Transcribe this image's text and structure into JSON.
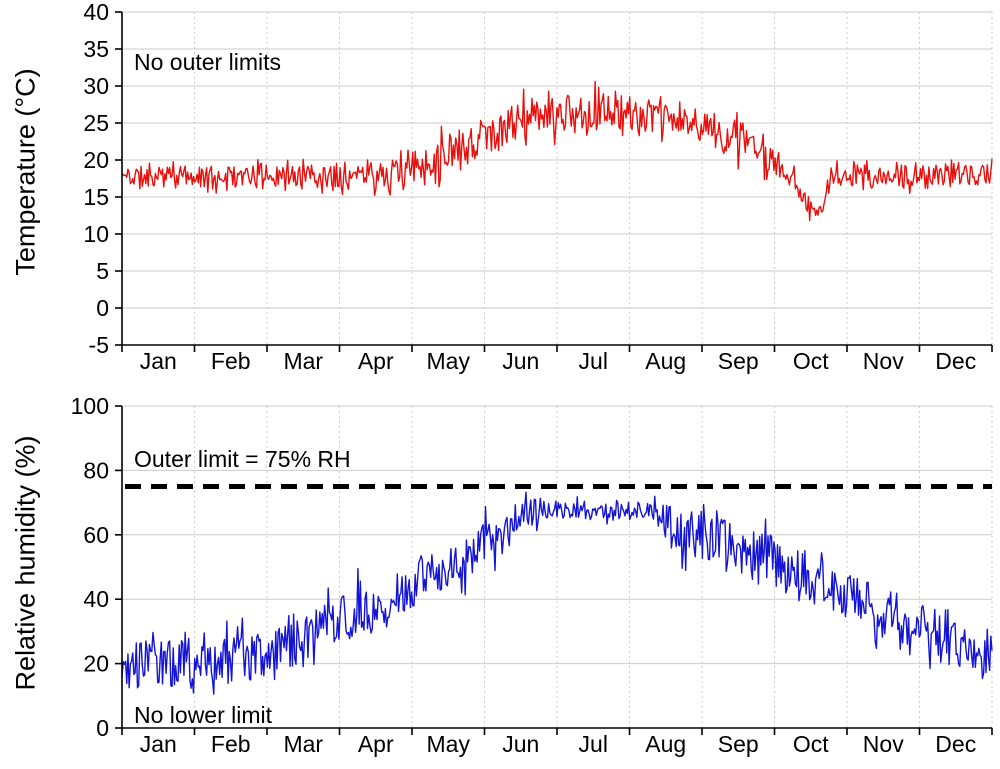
{
  "figure": {
    "background": "#ffffff",
    "grid_color": "#cbcbcb",
    "axis_color": "#000000"
  },
  "chart_data": [
    {
      "type": "line",
      "id": "temperature",
      "ylabel": "Temperature (°C)",
      "x_categories": [
        "Jan",
        "Feb",
        "Mar",
        "Apr",
        "May",
        "Jun",
        "Jul",
        "Aug",
        "Sep",
        "Oct",
        "Nov",
        "Dec"
      ],
      "ylim": [
        -5,
        40
      ],
      "y_step": 5,
      "grid": true,
      "legend": "none",
      "annotations": [
        "No outer limits"
      ],
      "seed": 11,
      "value_clamp": [
        10.6,
        31.2
      ],
      "series": [
        {
          "name": "Temperature",
          "color": "#e8100c",
          "monthly_mean": [
            17.8,
            17.8,
            17.8,
            17.9,
            20.5,
            24.8,
            26.7,
            26.1,
            23.3,
            16.5,
            17.9,
            17.9
          ],
          "noise_band": "±1.5 °C winter, ±2.5 °C summer; dip to ~11 °C in early October, peaks to ~31 °C in July",
          "envelope_anchors": [
            [
              0,
              17.8,
              1.4
            ],
            [
              100,
              17.8,
              1.4
            ],
            [
              113,
              18.2,
              1.8
            ],
            [
              125,
              19.3,
              2.4
            ],
            [
              140,
              21.3,
              2.6
            ],
            [
              155,
              23.8,
              2.6
            ],
            [
              170,
              25.4,
              2.5
            ],
            [
              185,
              26.4,
              2.4
            ],
            [
              205,
              26.7,
              2.4
            ],
            [
              222,
              25.9,
              2.2
            ],
            [
              238,
              25.0,
              2.2
            ],
            [
              252,
              23.5,
              2.2
            ],
            [
              264,
              21.8,
              2.0
            ],
            [
              274,
              19.8,
              1.8
            ],
            [
              282,
              17.3,
              1.5
            ],
            [
              288,
              14.2,
              1.2
            ],
            [
              292,
              12.3,
              0.9
            ],
            [
              295,
              15.3,
              1.2
            ],
            [
              298,
              17.8,
              1.4
            ],
            [
              365,
              17.9,
              1.4
            ]
          ]
        }
      ]
    },
    {
      "type": "line",
      "id": "humidity",
      "ylabel": "Relative humidity (%)",
      "x_categories": [
        "Jan",
        "Feb",
        "Mar",
        "Apr",
        "May",
        "Jun",
        "Jul",
        "Aug",
        "Sep",
        "Oct",
        "Nov",
        "Dec"
      ],
      "ylim": [
        0,
        100
      ],
      "y_step": 20,
      "grid": true,
      "legend": "none",
      "annotations": [
        "Outer limit = 75% RH",
        "No lower limit"
      ],
      "seed": 97,
      "value_clamp": [
        10.5,
        77.5
      ],
      "limit_line": {
        "label": "Outer limit = 75% RH",
        "value": 75,
        "color": "#000000",
        "style": "dashed"
      },
      "series": [
        {
          "name": "Relative humidity",
          "color": "#1414d4",
          "monthly_mean": [
            20,
            21,
            28,
            37,
            48,
            60,
            67.5,
            66.5,
            57,
            47,
            37,
            27
          ],
          "noise_band": "±7% RH most of year; tight ±2.5% plateau ~67.5% mid-Jun to mid-Aug; brief peak touching ~77% near mid-June",
          "envelope_anchors": [
            [
              0,
              20,
              7.5
            ],
            [
              25,
              19.5,
              7.5
            ],
            [
              50,
              21,
              7.5
            ],
            [
              70,
              26,
              7.5
            ],
            [
              90,
              33,
              7.5
            ],
            [
              110,
              40,
              7
            ],
            [
              130,
              47,
              7
            ],
            [
              150,
              56,
              6.5
            ],
            [
              162,
              62,
              6
            ],
            [
              170,
              69,
              5.5
            ],
            [
              176,
              68,
              3
            ],
            [
              185,
              67.5,
              2.5
            ],
            [
              222,
              67.5,
              2.5
            ],
            [
              230,
              63,
              7.5
            ],
            [
              243,
              60,
              7.5
            ],
            [
              258,
              56,
              7.5
            ],
            [
              273,
              52,
              7.5
            ],
            [
              290,
              46,
              7
            ],
            [
              304,
              42,
              7
            ],
            [
              320,
              36,
              7
            ],
            [
              334,
              31,
              7
            ],
            [
              350,
              26,
              7
            ],
            [
              365,
              23.5,
              7
            ]
          ]
        }
      ]
    }
  ]
}
